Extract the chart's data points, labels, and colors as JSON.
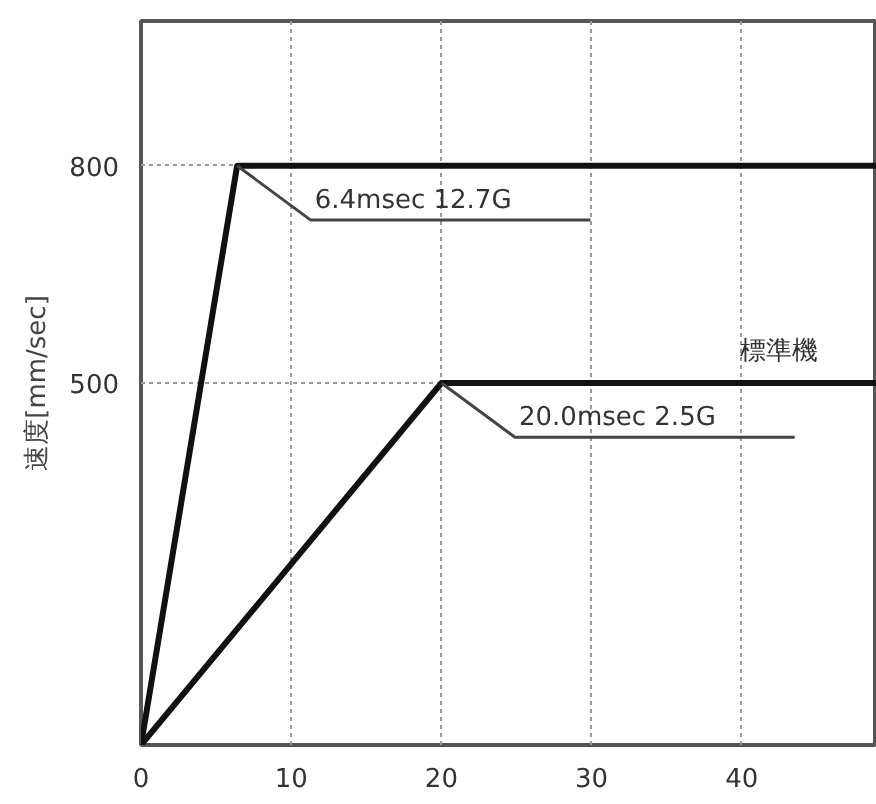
{
  "chart_data": {
    "type": "line",
    "ylabel": "速度[mm/sec]",
    "series": [
      {
        "color": "#111111",
        "x": [
          0,
          6.4,
          49
        ],
        "values": [
          0,
          800,
          800
        ]
      },
      {
        "name": "標準機",
        "color": "#111111",
        "x": [
          0,
          20,
          49
        ],
        "values": [
          0,
          500,
          500
        ]
      }
    ],
    "annotations": [
      {
        "text": "6.4msec 12.7G",
        "x": 6.4,
        "y": 800
      },
      {
        "text": "20.0msec 2.5G",
        "x": 20,
        "y": 500
      }
    ],
    "xlim": [
      0,
      49
    ],
    "ylim": [
      0,
      1000
    ],
    "xticks": [
      0,
      10,
      20,
      30,
      40
    ],
    "yticks": [
      500,
      800
    ],
    "grid": true,
    "line_style": "solid",
    "marker": "none"
  }
}
